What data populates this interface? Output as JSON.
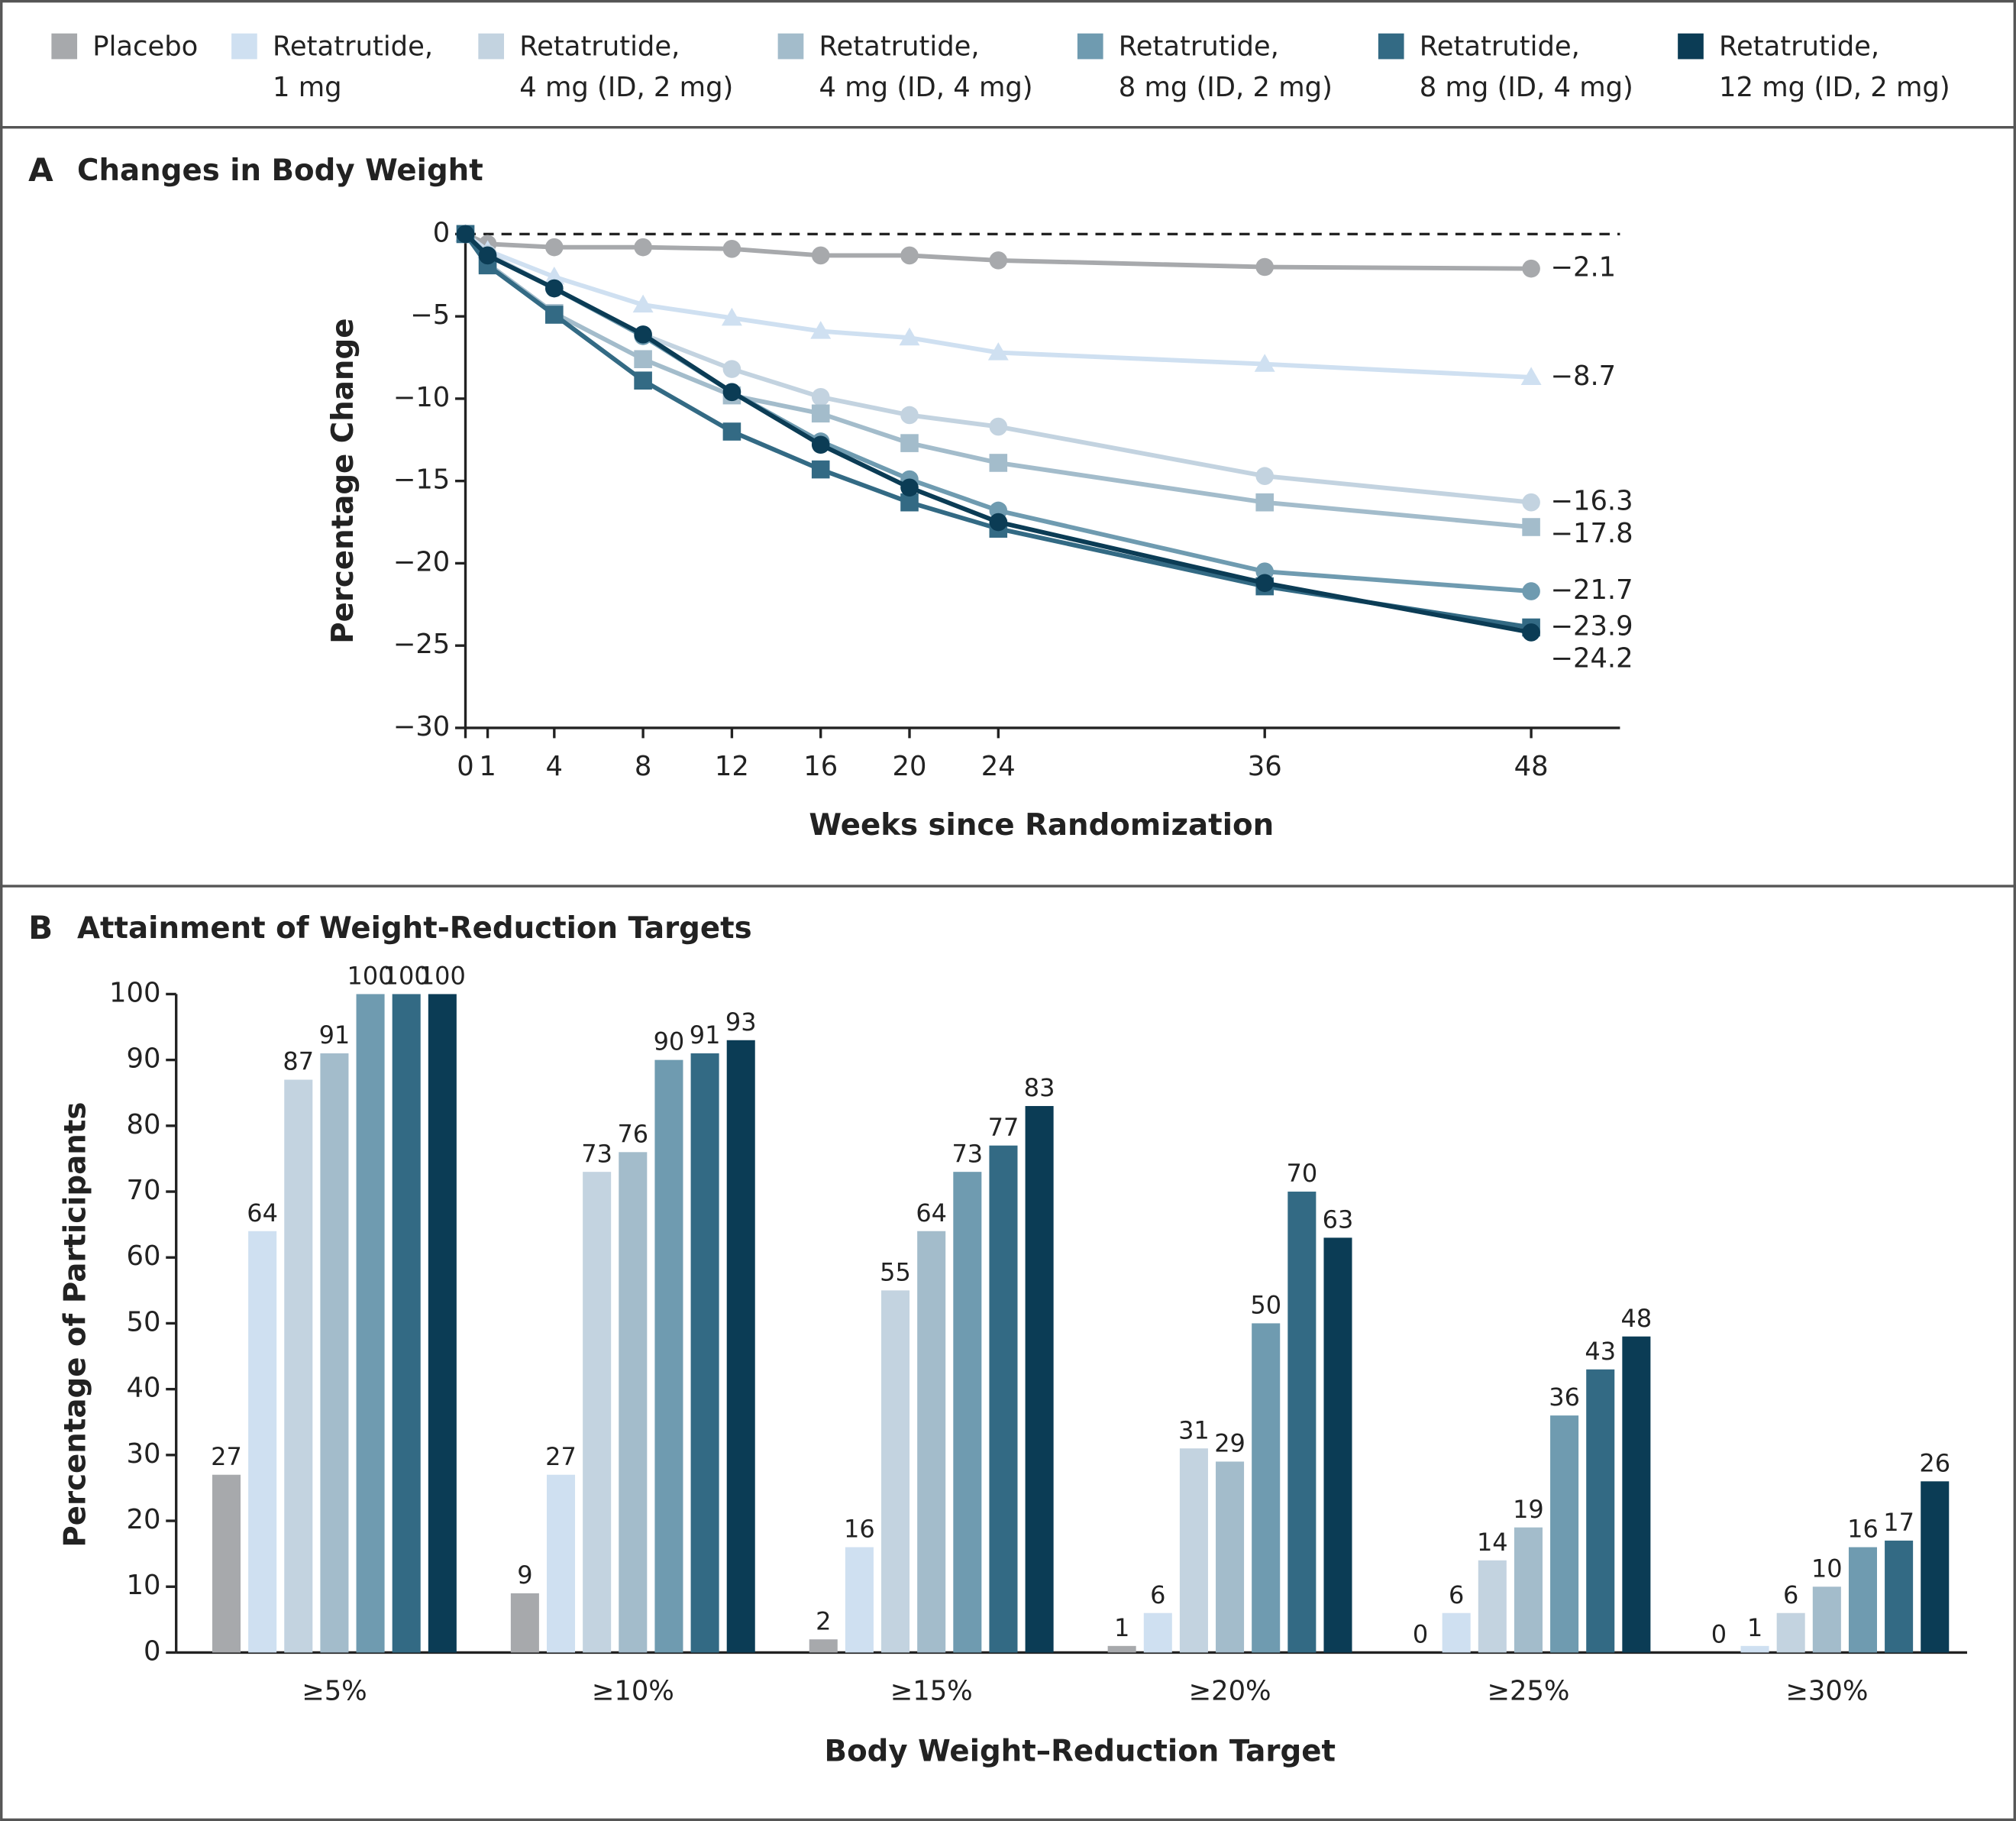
{
  "chart_data": [
    {
      "type": "line",
      "panel": "A",
      "title": "Changes in Body Weight",
      "x_label": "Weeks since Randomization",
      "y_label": "Percentage Change",
      "x": [
        0,
        1,
        4,
        8,
        12,
        16,
        20,
        24,
        36,
        48
      ],
      "xlim": [
        0,
        52
      ],
      "xticks": [
        0,
        1,
        4,
        8,
        12,
        16,
        20,
        24,
        36,
        48
      ],
      "ylim": [
        -30,
        0
      ],
      "yticks": [
        {
          "value": -30,
          "label": "−30"
        },
        {
          "value": -25,
          "label": "−25"
        },
        {
          "value": -20,
          "label": "−20"
        },
        {
          "value": -15,
          "label": "−15"
        },
        {
          "value": -10,
          "label": "−10"
        },
        {
          "value": -5,
          "label": "−5"
        },
        0
      ],
      "zero_line": true,
      "series": [
        {
          "name": "Placebo",
          "color": "#a7a9ac",
          "marker": "circle",
          "values": [
            0,
            -0.6,
            -0.8,
            -0.8,
            -0.9,
            -1.3,
            -1.3,
            -1.6,
            -2.0,
            -2.1
          ],
          "end_label": {
            "value": -2.1,
            "label": "−2.1"
          }
        },
        {
          "name": "Retatrutide, 1 mg",
          "color": "#cfe0f1",
          "marker": "triangle",
          "values": [
            0,
            -1.0,
            -2.6,
            -4.3,
            -5.1,
            -5.9,
            -6.3,
            -7.2,
            -7.9,
            -8.7
          ],
          "end_label": {
            "value": -8.7,
            "label": "−8.7"
          }
        },
        {
          "name": "Retatrutide, 4 mg (ID, 2 mg)",
          "color": "#c3d3e0",
          "marker": "circle",
          "values": [
            0,
            -1.2,
            -3.3,
            -6.1,
            -8.2,
            -9.9,
            -11.0,
            -11.7,
            -14.7,
            -16.3
          ],
          "end_label": {
            "value": -16.3,
            "label": "−16.3"
          }
        },
        {
          "name": "Retatrutide, 4 mg (ID, 4 mg)",
          "color": "#a3bccb",
          "marker": "square",
          "values": [
            0,
            -1.8,
            -4.8,
            -7.6,
            -9.8,
            -10.9,
            -12.7,
            -13.9,
            -16.3,
            -17.8
          ],
          "end_label": {
            "value": -17.8,
            "label": "−17.8"
          }
        },
        {
          "name": "Retatrutide, 8 mg (ID, 2 mg)",
          "color": "#6f9bb0",
          "marker": "circle",
          "values": [
            0,
            -1.3,
            -3.3,
            -6.2,
            -9.6,
            -12.6,
            -14.9,
            -16.8,
            -20.5,
            -21.7
          ],
          "end_label": {
            "value": -21.7,
            "label": "−21.7"
          }
        },
        {
          "name": "Retatrutide, 8 mg (ID, 4 mg)",
          "color": "#336a84",
          "marker": "square",
          "values": [
            0,
            -1.9,
            -4.9,
            -8.9,
            -12.0,
            -14.3,
            -16.3,
            -17.9,
            -21.4,
            -23.9
          ],
          "end_label": {
            "value": -23.9,
            "label": "−23.9"
          }
        },
        {
          "name": "Retatrutide, 12 mg (ID, 2 mg)",
          "color": "#0b3c55",
          "marker": "circle",
          "values": [
            0,
            -1.3,
            -3.3,
            -6.1,
            -9.6,
            -12.8,
            -15.4,
            -17.5,
            -21.2,
            -24.2
          ],
          "end_label": {
            "value": -24.2,
            "label": "−24.2"
          }
        }
      ]
    },
    {
      "type": "bar",
      "panel": "B",
      "title": "Attainment of Weight-Reduction Targets",
      "x_label": "Body  Weight–Reduction  Target",
      "y_label": "Percentage of Participants",
      "categories": [
        "≥5%",
        "≥10%",
        "≥15%",
        "≥20%",
        "≥25%",
        "≥30%"
      ],
      "ylim": [
        0,
        100
      ],
      "yticks": [
        0,
        10,
        20,
        30,
        40,
        50,
        60,
        70,
        80,
        90,
        100
      ],
      "series": [
        {
          "color": "#a7a9ac",
          "values": [
            27,
            9,
            2,
            1,
            0,
            0
          ]
        },
        {
          "color": "#cfe0f1",
          "values": [
            64,
            27,
            16,
            6,
            6,
            1
          ]
        },
        {
          "color": "#c3d3e0",
          "values": [
            87,
            73,
            55,
            31,
            14,
            6
          ]
        },
        {
          "color": "#a3bccb",
          "values": [
            91,
            76,
            64,
            29,
            19,
            10
          ]
        },
        {
          "color": "#6f9bb0",
          "values": [
            100,
            90,
            73,
            50,
            36,
            16
          ]
        },
        {
          "color": "#336a84",
          "values": [
            100,
            91,
            77,
            70,
            43,
            17
          ]
        },
        {
          "color": "#0b3c55",
          "values": [
            100,
            93,
            83,
            63,
            48,
            26
          ]
        }
      ]
    }
  ]
}
